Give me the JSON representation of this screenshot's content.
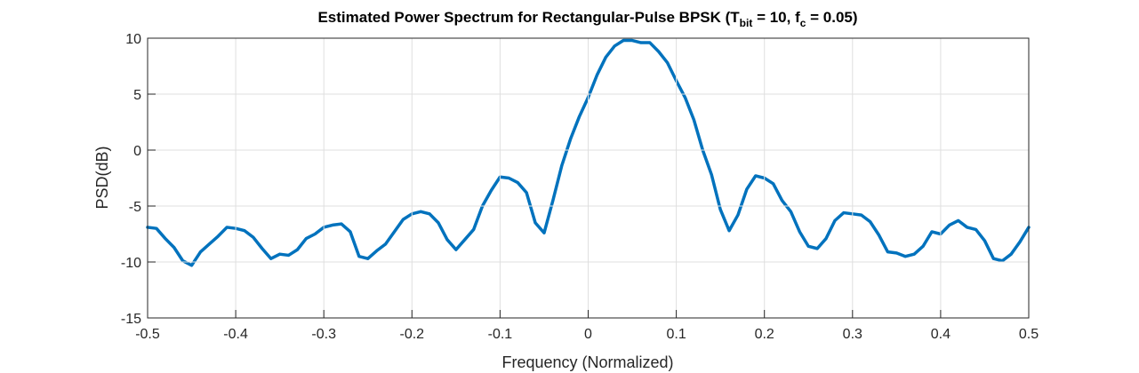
{
  "chart_data": {
    "type": "line",
    "title_parts": [
      "Estimated Power Spectrum for Rectangular-Pulse BPSK (T",
      "bit",
      " = 10, f",
      "c",
      " = 0.05)"
    ],
    "xlabel": "Frequency (Normalized)",
    "ylabel": "PSD(dB)",
    "xlim": [
      -0.5,
      0.5
    ],
    "ylim": [
      -15,
      10
    ],
    "xticks": [
      -0.5,
      -0.4,
      -0.3,
      -0.2,
      -0.1,
      0,
      0.1,
      0.2,
      0.3,
      0.4,
      0.5
    ],
    "yticks": [
      -15,
      -10,
      -5,
      0,
      5,
      10
    ],
    "grid": true,
    "series": [
      {
        "color": "#0072bd",
        "x": [
          -0.5,
          -0.49,
          -0.48,
          -0.47,
          -0.46,
          -0.45,
          -0.44,
          -0.43,
          -0.42,
          -0.41,
          -0.4,
          -0.39,
          -0.38,
          -0.37,
          -0.36,
          -0.35,
          -0.34,
          -0.33,
          -0.32,
          -0.31,
          -0.3,
          -0.29,
          -0.28,
          -0.27,
          -0.26,
          -0.25,
          -0.24,
          -0.23,
          -0.22,
          -0.21,
          -0.2,
          -0.19,
          -0.18,
          -0.17,
          -0.16,
          -0.15,
          -0.14,
          -0.13,
          -0.12,
          -0.11,
          -0.1,
          -0.09,
          -0.08,
          -0.07,
          -0.06,
          -0.05,
          -0.04,
          -0.03,
          -0.02,
          -0.01,
          0,
          0.01,
          0.02,
          0.03,
          0.04,
          0.05,
          0.06,
          0.07,
          0.08,
          0.09,
          0.1,
          0.11,
          0.12,
          0.13,
          0.14,
          0.15,
          0.16,
          0.17,
          0.18,
          0.19,
          0.2,
          0.21,
          0.22,
          0.23,
          0.24,
          0.25,
          0.26,
          0.27,
          0.28,
          0.29,
          0.3,
          0.31,
          0.32,
          0.33,
          0.34,
          0.35,
          0.36,
          0.37,
          0.38,
          0.39,
          0.4,
          0.41,
          0.42,
          0.43,
          0.44,
          0.45,
          0.46,
          0.47,
          0.48,
          0.49,
          0.5
        ],
        "values": [
          -6.9,
          -7.0,
          -7.9,
          -8.7,
          -9.9,
          -10.3,
          -9.1,
          -8.4,
          -7.7,
          -6.9,
          -7.0,
          -7.2,
          -7.8,
          -8.8,
          -9.7,
          -9.3,
          -9.4,
          -8.9,
          -7.9,
          -7.5,
          -6.9,
          -6.7,
          -6.6,
          -7.3,
          -9.5,
          -9.7,
          -9.0,
          -8.4,
          -7.3,
          -6.2,
          -5.7,
          -5.5,
          -5.7,
          -6.5,
          -8.0,
          -8.9,
          -8.0,
          -7.1,
          -5.0,
          -3.6,
          -2.4,
          -2.5,
          -2.9,
          -3.8,
          -6.5,
          -7.4,
          -4.5,
          -1.4,
          1.0,
          3.0,
          4.7,
          6.7,
          8.3,
          9.3,
          9.8,
          9.8,
          9.6,
          9.6,
          8.8,
          7.8,
          6.2,
          4.7,
          2.7,
          0.0,
          -2.2,
          -5.3,
          -7.2,
          -5.8,
          -3.5,
          -2.3,
          -2.5,
          -3.0,
          -4.5,
          -5.5,
          -7.3,
          -8.6,
          -8.8,
          -7.9,
          -6.3,
          -5.6,
          -5.7,
          -5.8,
          -6.4,
          -7.6,
          -9.1,
          -9.2,
          -9.5,
          -9.3,
          -8.6,
          -7.3,
          -7.5,
          -6.7,
          -6.3,
          -6.9,
          -7.1,
          -8.1,
          -9.7,
          -9.9,
          -9.3,
          -8.2,
          -6.9
        ]
      }
    ]
  }
}
